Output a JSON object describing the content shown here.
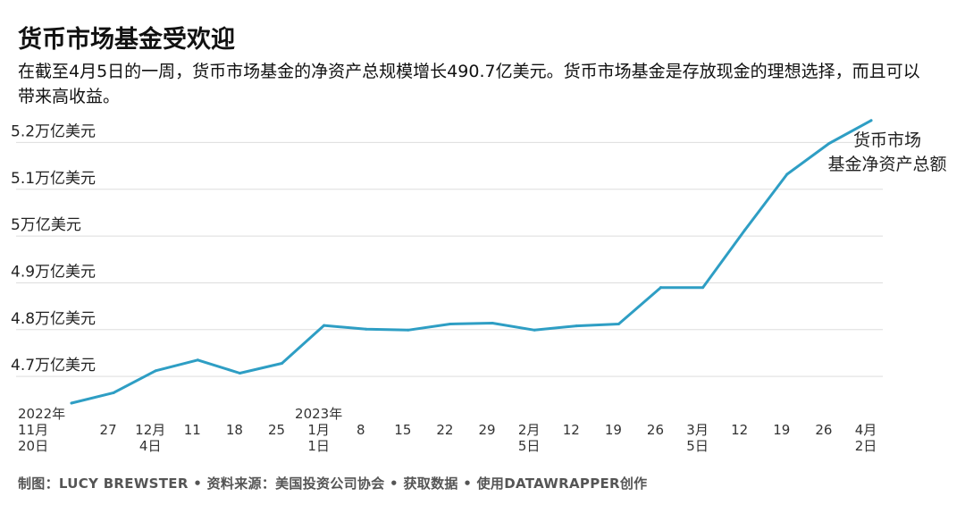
{
  "title": "货币市场基金受欢迎",
  "description": "在截至4月5日的一周，货币市场基金的净资产总规模增长490.7亿美元。货币市场基金是存放现金的理想选择，而且可以带来高收益。",
  "footer": "制图：LUCY BREWSTER • 资料来源：美国投资公司协会 • 获取数据 • 使用DATAWRAPPER创作",
  "chart_data": {
    "type": "line",
    "title": "货币市场基金受欢迎",
    "series": [
      {
        "name": "货币市场基金净资产总额",
        "name_lines": [
          "货币市场",
          "基金净资产总额"
        ],
        "color": "#2e9ec4",
        "values": [
          4.643,
          4.665,
          4.712,
          4.735,
          4.707,
          4.728,
          4.809,
          4.801,
          4.799,
          4.812,
          4.814,
          4.799,
          4.808,
          4.812,
          4.89,
          4.89,
          5.013,
          5.132,
          5.198,
          5.247
        ]
      }
    ],
    "x": [
      "2022-11-20",
      "2022-11-27",
      "2022-12-04",
      "2022-12-11",
      "2022-12-18",
      "2022-12-25",
      "2023-01-01",
      "2023-01-08",
      "2023-01-15",
      "2023-01-22",
      "2023-01-29",
      "2023-02-05",
      "2023-02-12",
      "2023-02-19",
      "2023-02-26",
      "2023-03-05",
      "2023-03-12",
      "2023-03-19",
      "2023-03-26",
      "2023-04-02"
    ],
    "ylim": [
      4.62,
      5.26
    ],
    "y_ticks": [
      {
        "value": 4.7,
        "label": "4.7万亿美元"
      },
      {
        "value": 4.8,
        "label": "4.8万亿美元"
      },
      {
        "value": 4.9,
        "label": "4.9万亿美元"
      },
      {
        "value": 5.0,
        "label": "5万亿美元"
      },
      {
        "value": 5.1,
        "label": "5.1万亿美元"
      },
      {
        "value": 5.2,
        "label": "5.2万亿美元"
      }
    ],
    "x_ticks": [
      {
        "index": 0,
        "lines": [
          "2022年",
          "11月",
          "20日"
        ]
      },
      {
        "index": 1,
        "lines": [
          "27"
        ]
      },
      {
        "index": 2,
        "lines": [
          "12月",
          "4日"
        ]
      },
      {
        "index": 3,
        "lines": [
          "11"
        ]
      },
      {
        "index": 4,
        "lines": [
          "18"
        ]
      },
      {
        "index": 5,
        "lines": [
          "25"
        ]
      },
      {
        "index": 6,
        "lines": [
          "2023年",
          "1月",
          "1日"
        ]
      },
      {
        "index": 7,
        "lines": [
          "8"
        ]
      },
      {
        "index": 8,
        "lines": [
          "15"
        ]
      },
      {
        "index": 9,
        "lines": [
          "22"
        ]
      },
      {
        "index": 10,
        "lines": [
          "29"
        ]
      },
      {
        "index": 11,
        "lines": [
          "2月",
          "5日"
        ]
      },
      {
        "index": 12,
        "lines": [
          "12"
        ]
      },
      {
        "index": 13,
        "lines": [
          "19"
        ]
      },
      {
        "index": 14,
        "lines": [
          "26"
        ]
      },
      {
        "index": 15,
        "lines": [
          "3月",
          "5日"
        ]
      },
      {
        "index": 16,
        "lines": [
          "12"
        ]
      },
      {
        "index": 17,
        "lines": [
          "19"
        ]
      },
      {
        "index": 18,
        "lines": [
          "26"
        ]
      },
      {
        "index": 19,
        "lines": [
          "4月",
          "2日"
        ]
      }
    ],
    "grid": true,
    "legend": "none"
  }
}
